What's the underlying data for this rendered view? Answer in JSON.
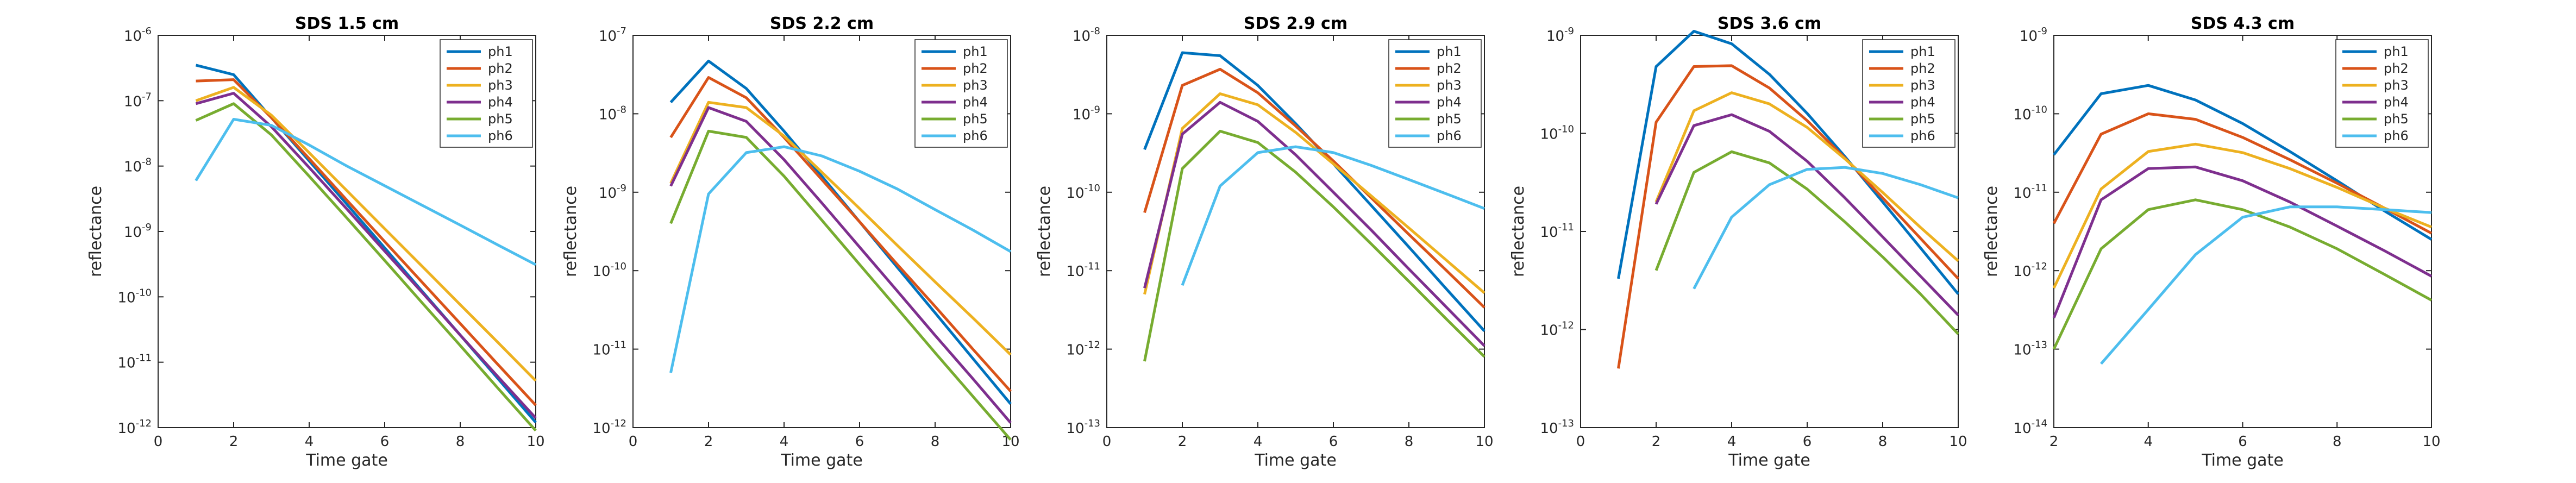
{
  "figure": {
    "background": "#ffffff",
    "axis_color": "#262626"
  },
  "series_colors": {
    "ph1": "#0072BD",
    "ph2": "#D95319",
    "ph3": "#EDB120",
    "ph4": "#7E2F8E",
    "ph5": "#77AC30",
    "ph6": "#4DBEEE"
  },
  "chart_data": [
    {
      "type": "line",
      "title": "SDS 1.5 cm",
      "xlabel": "Time gate",
      "ylabel": "reflectance",
      "xlim": [
        0,
        10
      ],
      "xticks": [
        0,
        2,
        4,
        6,
        8,
        10
      ],
      "ylim": [
        1e-12,
        1e-06
      ],
      "yscale": "log",
      "yticks_exp": [
        -12,
        -11,
        -10,
        -9,
        -8,
        -7,
        -6
      ],
      "grid": false,
      "legend_position": "top-right",
      "x": [
        1,
        2,
        3,
        4,
        5,
        6,
        7,
        8,
        9,
        10
      ],
      "series": [
        {
          "name": "ph1",
          "values": [
            3.5e-07,
            2.5e-07,
            5.5e-08,
            1.2e-08,
            2.6e-09,
            5.6e-10,
            1.2e-10,
            2.6e-11,
            5.6e-12,
            1.2e-12
          ]
        },
        {
          "name": "ph2",
          "values": [
            2e-07,
            2.1e-07,
            5.5e-08,
            1.3e-08,
            3e-09,
            7e-10,
            1.65e-10,
            3.9e-11,
            9.2e-12,
            2.2e-12
          ]
        },
        {
          "name": "ph3",
          "values": [
            1e-07,
            1.6e-07,
            6e-08,
            1.6e-08,
            4.2e-09,
            1.1e-09,
            2.9e-10,
            7.6e-11,
            2e-11,
            5.2e-12
          ]
        },
        {
          "name": "ph4",
          "values": [
            9e-08,
            1.3e-07,
            4e-08,
            9.5e-09,
            2.2e-09,
            5e-10,
            1.15e-10,
            2.6e-11,
            6e-12,
            1.4e-12
          ]
        },
        {
          "name": "ph5",
          "values": [
            5e-08,
            9e-08,
            3e-08,
            7e-09,
            1.6e-09,
            3.6e-10,
            8e-11,
            1.8e-11,
            4e-12,
            9e-13
          ]
        },
        {
          "name": "ph6",
          "values": [
            6e-09,
            5.2e-08,
            4.2e-08,
            2.1e-08,
            1e-08,
            5e-09,
            2.5e-09,
            1.25e-09,
            6.2e-10,
            3.1e-10
          ]
        }
      ]
    },
    {
      "type": "line",
      "title": "SDS 2.2 cm",
      "xlabel": "Time gate",
      "ylabel": "reflectance",
      "xlim": [
        0,
        10
      ],
      "xticks": [
        0,
        2,
        4,
        6,
        8,
        10
      ],
      "ylim": [
        1e-12,
        1e-07
      ],
      "yscale": "log",
      "yticks_exp": [
        -12,
        -11,
        -10,
        -9,
        -8,
        -7
      ],
      "grid": false,
      "legend_position": "top-right",
      "x": [
        1,
        2,
        3,
        4,
        5,
        6,
        7,
        8,
        9,
        10
      ],
      "series": [
        {
          "name": "ph1",
          "values": [
            1.4e-08,
            4.7e-08,
            2.1e-08,
            6e-09,
            1.6e-09,
            4.2e-10,
            1.1e-10,
            2.9e-11,
            7.6e-12,
            2e-12
          ]
        },
        {
          "name": "ph2",
          "values": [
            5e-09,
            2.9e-08,
            1.6e-08,
            5e-09,
            1.45e-09,
            4.2e-10,
            1.2e-10,
            3.5e-11,
            1e-11,
            2.9e-12
          ]
        },
        {
          "name": "ph3",
          "values": [
            1.3e-09,
            1.4e-08,
            1.2e-08,
            5.2e-09,
            1.8e-09,
            6.2e-10,
            2.1e-10,
            7.2e-11,
            2.5e-11,
            8.5e-12
          ]
        },
        {
          "name": "ph4",
          "values": [
            1.2e-09,
            1.2e-08,
            8e-09,
            2.6e-09,
            7.3e-10,
            2e-10,
            5.5e-11,
            1.5e-11,
            4.2e-12,
            1.15e-12
          ]
        },
        {
          "name": "ph5",
          "values": [
            4e-10,
            6e-09,
            5e-09,
            1.6e-09,
            4.4e-10,
            1.2e-10,
            3.3e-11,
            9e-12,
            2.5e-12,
            7e-13
          ]
        },
        {
          "name": "ph6",
          "values": [
            5e-12,
            9.5e-10,
            3.2e-09,
            3.8e-09,
            2.9e-09,
            1.85e-09,
            1.1e-09,
            6e-10,
            3.3e-10,
            1.75e-10
          ]
        }
      ]
    },
    {
      "type": "line",
      "title": "SDS 2.9 cm",
      "xlabel": "Time gate",
      "ylabel": "reflectance",
      "xlim": [
        0,
        10
      ],
      "xticks": [
        0,
        2,
        4,
        6,
        8,
        10
      ],
      "ylim": [
        1e-13,
        1e-08
      ],
      "yscale": "log",
      "yticks_exp": [
        -13,
        -12,
        -11,
        -10,
        -9,
        -8
      ],
      "grid": false,
      "legend_position": "top-right",
      "x": [
        1,
        2,
        3,
        4,
        5,
        6,
        7,
        8,
        9,
        10
      ],
      "series": [
        {
          "name": "ph1",
          "values": [
            3.5e-10,
            6e-09,
            5.5e-09,
            2.3e-09,
            7.5e-10,
            2.3e-10,
            6.8e-11,
            2e-11,
            5.8e-12,
            1.7e-12
          ]
        },
        {
          "name": "ph2",
          "values": [
            5.5e-11,
            2.3e-09,
            3.7e-09,
            1.85e-09,
            7e-10,
            2.5e-10,
            8.5e-11,
            2.9e-11,
            1e-11,
            3.4e-12
          ]
        },
        {
          "name": "ph3",
          "values": [
            5e-12,
            6.5e-10,
            1.8e-09,
            1.3e-09,
            5.8e-10,
            2.3e-10,
            9e-11,
            3.5e-11,
            1.35e-11,
            5.2e-12
          ]
        },
        {
          "name": "ph4",
          "values": [
            6e-12,
            5.5e-10,
            1.4e-09,
            8e-10,
            3e-10,
            1e-10,
            3.3e-11,
            1.05e-11,
            3.4e-12,
            1.1e-12
          ]
        },
        {
          "name": "ph5",
          "values": [
            7e-13,
            2e-10,
            6e-10,
            4.3e-10,
            1.8e-10,
            6.5e-11,
            2.2e-11,
            7.3e-12,
            2.4e-12,
            8e-13
          ]
        },
        {
          "name": "ph6",
          "values": [
            null,
            6.5e-12,
            1.2e-10,
            3.2e-10,
            3.8e-10,
            3.2e-10,
            2.2e-10,
            1.45e-10,
            9.5e-11,
            6.2e-11
          ]
        }
      ]
    },
    {
      "type": "line",
      "title": "SDS 3.6 cm",
      "xlabel": "Time gate",
      "ylabel": "reflectance",
      "xlim": [
        0,
        10
      ],
      "xticks": [
        0,
        2,
        4,
        6,
        8,
        10
      ],
      "ylim": [
        1e-13,
        1e-09
      ],
      "yscale": "log",
      "yticks_exp": [
        -13,
        -12,
        -11,
        -10,
        -9
      ],
      "grid": false,
      "legend_position": "top-right",
      "x": [
        1,
        2,
        3,
        4,
        5,
        6,
        7,
        8,
        9,
        10
      ],
      "series": [
        {
          "name": "ph1",
          "values": [
            3.3e-12,
            4.8e-10,
            1.1e-09,
            8.2e-10,
            4e-10,
            1.6e-10,
            5.8e-11,
            2e-11,
            6.8e-12,
            2.3e-12
          ]
        },
        {
          "name": "ph2",
          "values": [
            4e-13,
            1.3e-10,
            4.8e-10,
            4.9e-10,
            2.9e-10,
            1.35e-10,
            5.6e-11,
            2.2e-11,
            8.5e-12,
            3.3e-12
          ]
        },
        {
          "name": "ph3",
          "values": [
            null,
            2e-11,
            1.7e-10,
            2.6e-10,
            2e-10,
            1.15e-10,
            5.5e-11,
            2.5e-11,
            1.1e-11,
            5e-12
          ]
        },
        {
          "name": "ph4",
          "values": [
            null,
            1.9e-11,
            1.2e-10,
            1.55e-10,
            1.05e-10,
            5.2e-11,
            2.2e-11,
            8.8e-12,
            3.5e-12,
            1.4e-12
          ]
        },
        {
          "name": "ph5",
          "values": [
            null,
            4e-12,
            4e-11,
            6.5e-11,
            5e-11,
            2.7e-11,
            1.25e-11,
            5.5e-12,
            2.3e-12,
            9e-13
          ]
        },
        {
          "name": "ph6",
          "values": [
            null,
            null,
            2.6e-12,
            1.4e-11,
            3e-11,
            4.3e-11,
            4.5e-11,
            3.9e-11,
            3e-11,
            2.2e-11
          ]
        }
      ]
    },
    {
      "type": "line",
      "title": "SDS 4.3 cm",
      "xlabel": "Time gate",
      "ylabel": "reflectance",
      "xlim": [
        2,
        10
      ],
      "xticks": [
        2,
        4,
        6,
        8,
        10
      ],
      "ylim": [
        1e-14,
        1e-09
      ],
      "yscale": "log",
      "yticks_exp": [
        -14,
        -13,
        -12,
        -11,
        -10,
        -9
      ],
      "grid": false,
      "legend_position": "top-right",
      "x": [
        2,
        3,
        4,
        5,
        6,
        7,
        8,
        9,
        10
      ],
      "series": [
        {
          "name": "ph1",
          "values": [
            3e-11,
            1.8e-10,
            2.3e-10,
            1.5e-10,
            7.5e-11,
            3.3e-11,
            1.4e-11,
            5.8e-12,
            2.5e-12
          ]
        },
        {
          "name": "ph2",
          "values": [
            4e-12,
            5.5e-11,
            1e-10,
            8.5e-11,
            5e-11,
            2.6e-11,
            1.3e-11,
            6.3e-12,
            3e-12
          ]
        },
        {
          "name": "ph3",
          "values": [
            6e-13,
            1.1e-11,
            3.3e-11,
            4.1e-11,
            3.2e-11,
            2e-11,
            1.15e-11,
            6.3e-12,
            3.6e-12
          ]
        },
        {
          "name": "ph4",
          "values": [
            2.5e-13,
            8e-12,
            2e-11,
            2.1e-11,
            1.4e-11,
            7.5e-12,
            3.7e-12,
            1.8e-12,
            8.5e-13
          ]
        },
        {
          "name": "ph5",
          "values": [
            1e-13,
            1.9e-12,
            6e-12,
            8e-12,
            6e-12,
            3.6e-12,
            1.9e-12,
            9e-13,
            4.2e-13
          ]
        },
        {
          "name": "ph6",
          "values": [
            null,
            6.5e-14,
            3.2e-13,
            1.6e-12,
            4.8e-12,
            6.5e-12,
            6.5e-12,
            6e-12,
            5.5e-12
          ]
        }
      ]
    }
  ]
}
